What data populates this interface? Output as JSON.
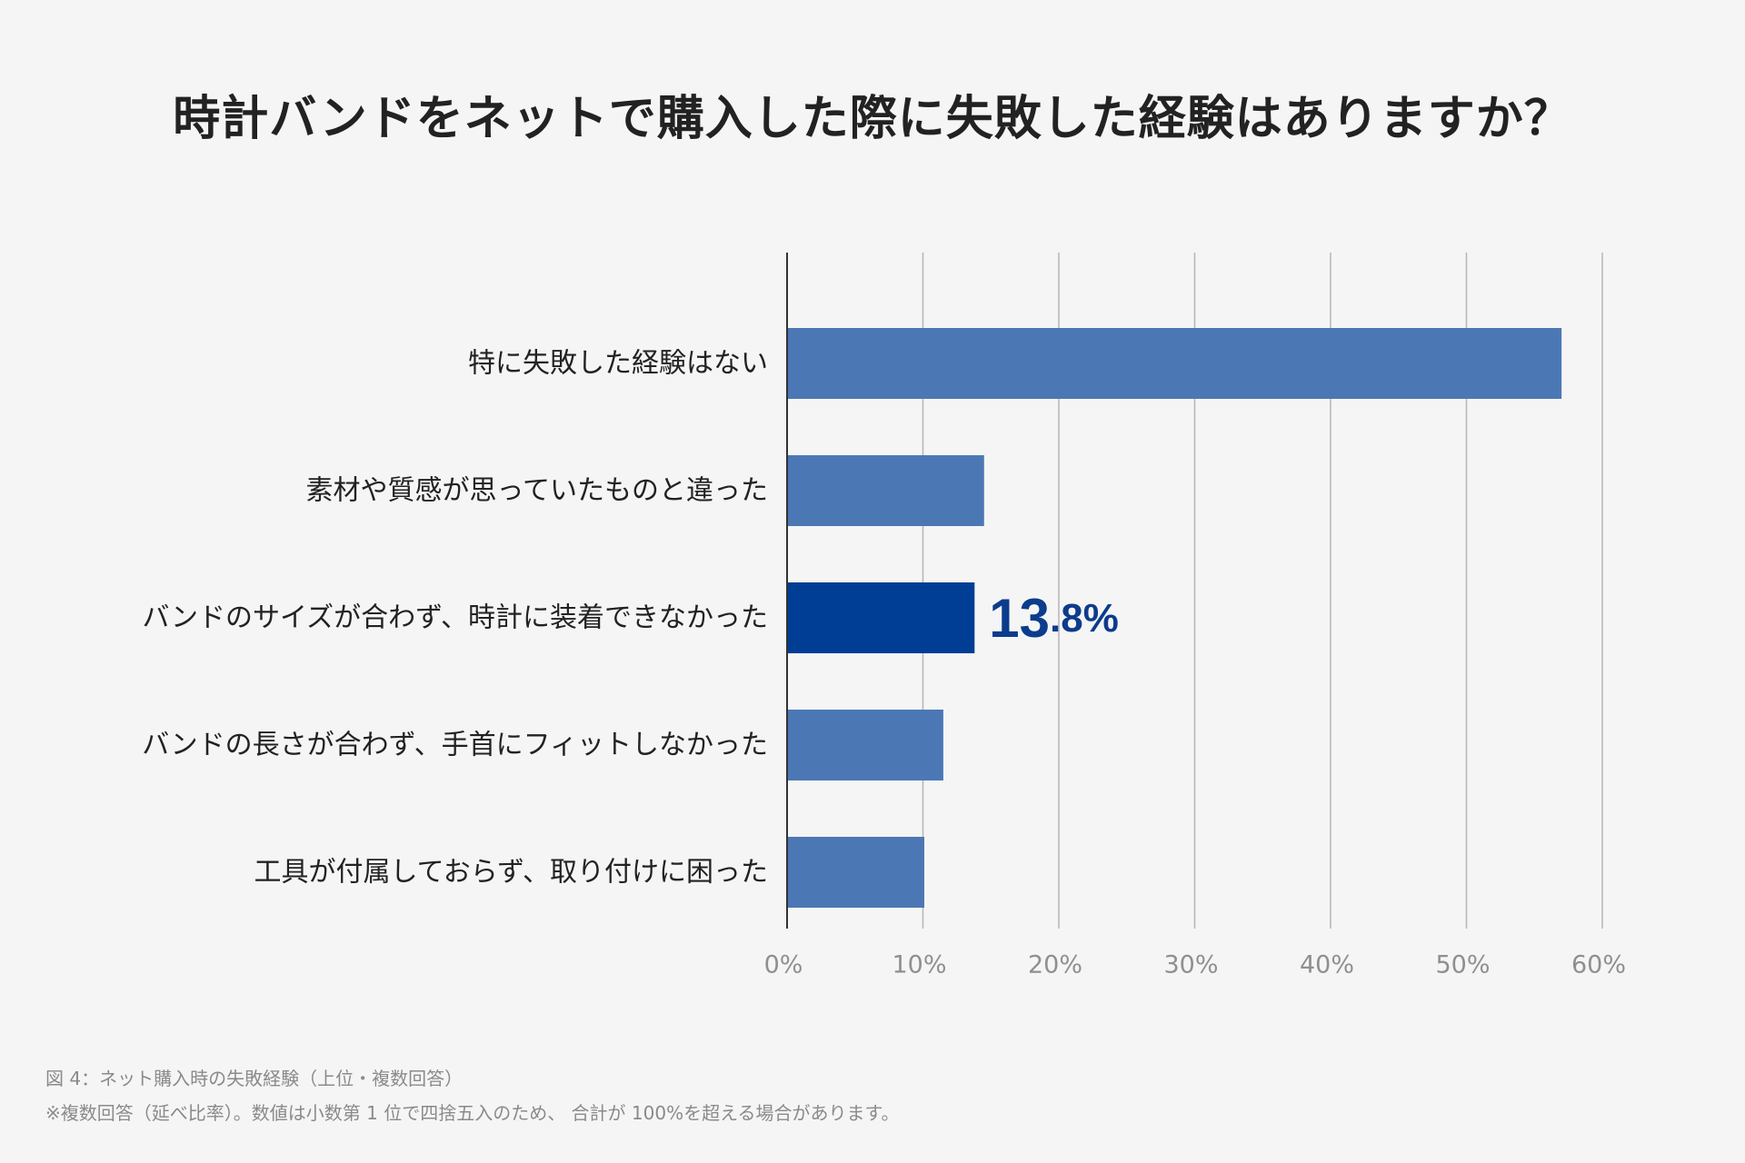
{
  "title": "時計バンドをネットで購入した際に失敗した経験はありますか？",
  "chart_data": {
    "type": "bar",
    "orientation": "horizontal",
    "categories": [
      "特に失敗した経験はない",
      "素材や質感が思っていたものと違った",
      "バンドのサイズが合わず、時計に装着できなかった",
      "バンドの長さが合わず、手首にフィットしなかった",
      "工具が付属しておらず、取り付けに困った"
    ],
    "values": [
      57.0,
      14.5,
      13.8,
      11.5,
      10.1
    ],
    "highlight_index": 2,
    "highlight_label_main": "13",
    "highlight_label_rest": ".8%",
    "xlim": [
      0,
      60
    ],
    "ticks": [
      0,
      10,
      20,
      30,
      40,
      50,
      60
    ],
    "tick_labels": [
      "0%",
      "10%",
      "20%",
      "30%",
      "40%",
      "50%",
      "60%"
    ],
    "grid": true,
    "colors": {
      "bar": "#4b78b4",
      "highlight_bar": "#003d94",
      "highlight_label": "#0c3c8c",
      "grid": "#b5b5b5",
      "axis": "#333333",
      "tick_label": "#8f8f8f",
      "category_label": "#222222"
    }
  },
  "footnotes": {
    "line1": "図 4：ネット購入時の失敗経験（上位・複数回答）",
    "line2": "※複数回答（延べ比率）。数値は小数第 1 位で四捨五入のため、 合計が 100%を超える場合があります。"
  }
}
